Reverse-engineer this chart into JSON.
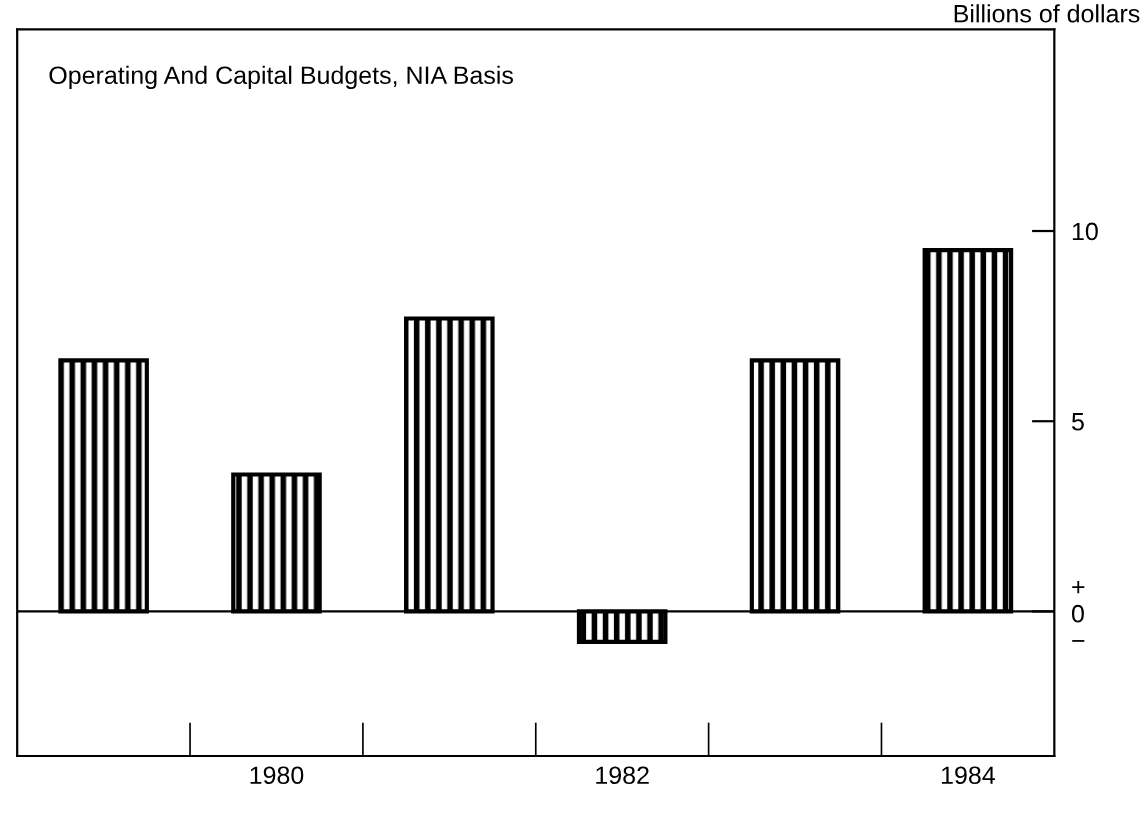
{
  "chart_data": {
    "type": "bar",
    "title": "Operating And Capital Budgets, NIA Basis",
    "ylabel": "Billions of dollars",
    "categories": [
      null,
      "1980",
      null,
      "1982",
      null,
      "1984"
    ],
    "values": [
      6.6,
      3.6,
      7.7,
      -0.8,
      6.6,
      9.5
    ],
    "color": "#000000",
    "ylim": [
      -3.8,
      15.3
    ],
    "yticks": [
      {
        "value": 0,
        "label": "+\n0\n−"
      },
      5,
      10
    ],
    "ref_lines": [
      {
        "axis": "y",
        "value": 0,
        "color": "#000000"
      }
    ],
    "grid": false,
    "legend": false
  }
}
